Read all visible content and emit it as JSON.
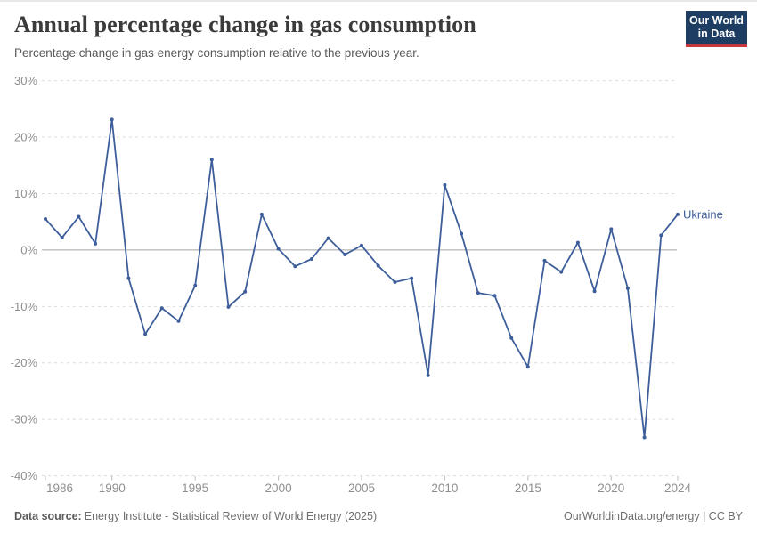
{
  "header": {
    "title": "Annual percentage change in gas consumption",
    "subtitle": "Percentage change in gas energy consumption relative to the previous year."
  },
  "logo": {
    "line1": "Our World",
    "line2": "in Data",
    "bg_color": "#1d3d63",
    "accent_color": "#c5383b",
    "text_color": "#ffffff"
  },
  "chart_data": {
    "type": "line",
    "title": "Annual percentage change in gas consumption",
    "xlabel": "",
    "ylabel": "",
    "xlim": [
      1986,
      2024
    ],
    "ylim": [
      -40,
      30
    ],
    "grid": true,
    "zero_line": true,
    "legend_position": "end-of-line",
    "x": [
      1986,
      1987,
      1988,
      1989,
      1990,
      1991,
      1992,
      1993,
      1994,
      1995,
      1996,
      1997,
      1998,
      1999,
      2000,
      2001,
      2002,
      2003,
      2004,
      2005,
      2006,
      2007,
      2008,
      2009,
      2010,
      2011,
      2012,
      2013,
      2014,
      2015,
      2016,
      2017,
      2018,
      2019,
      2020,
      2021,
      2022,
      2023,
      2024
    ],
    "series": [
      {
        "name": "Ukraine",
        "color": "#3d5e9a",
        "values": [
          5.5,
          2.2,
          5.9,
          1.1,
          23.1,
          -5.0,
          -14.9,
          -10.3,
          -12.6,
          -6.3,
          16.0,
          -10.1,
          -7.4,
          6.3,
          0.2,
          -2.9,
          -1.6,
          2.1,
          -0.8,
          0.8,
          -2.8,
          -5.7,
          -5.0,
          -22.2,
          11.5,
          2.9,
          -7.6,
          -8.1,
          -15.6,
          -20.7,
          -1.9,
          -3.9,
          1.3,
          -7.3,
          3.7,
          -6.8,
          -33.2,
          2.6,
          6.3
        ]
      }
    ],
    "y_ticks": [
      {
        "label": "30%",
        "value": 30
      },
      {
        "label": "20%",
        "value": 20
      },
      {
        "label": "10%",
        "value": 10
      },
      {
        "label": "0%",
        "value": 0
      },
      {
        "label": "-10%",
        "value": -10
      },
      {
        "label": "-20%",
        "value": -20
      },
      {
        "label": "-30%",
        "value": -30
      },
      {
        "label": "-40%",
        "value": -40
      }
    ],
    "x_ticks": [
      {
        "label": "1986",
        "value": 1986
      },
      {
        "label": "1990",
        "value": 1990
      },
      {
        "label": "1995",
        "value": 1995
      },
      {
        "label": "2000",
        "value": 2000
      },
      {
        "label": "2005",
        "value": 2005
      },
      {
        "label": "2010",
        "value": 2010
      },
      {
        "label": "2015",
        "value": 2015
      },
      {
        "label": "2020",
        "value": 2020
      },
      {
        "label": "2024",
        "value": 2024
      }
    ],
    "colors": {
      "gridline": "#dcdcdc",
      "zero_line": "#a5a5a5",
      "tick_text": "#8f8f8f",
      "tick_mark": "#bdbdbd"
    }
  },
  "footer": {
    "datasource_label": "Data source:",
    "datasource_text": "Energy Institute - Statistical Review of World Energy (2025)",
    "credit_text": "OurWorldinData.org/energy | CC BY"
  }
}
